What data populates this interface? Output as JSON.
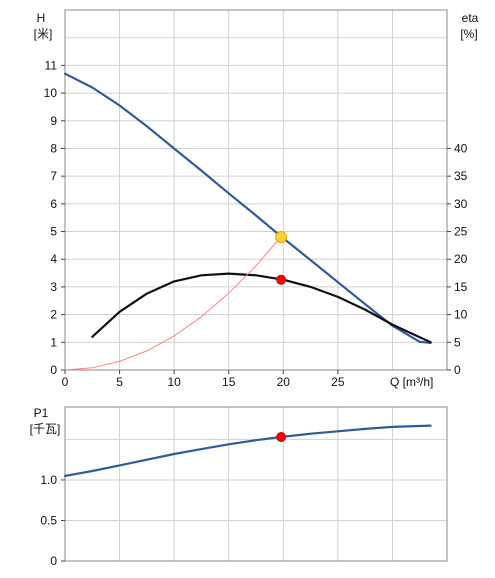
{
  "chart_data": [
    {
      "type": "line",
      "xlabel": "Q [m³/h]",
      "ylabel": "H\n[米]",
      "y2label": "eta\n[%]",
      "xlim": [
        0,
        35
      ],
      "ylim": [
        0,
        13
      ],
      "y2lim": [
        0,
        65
      ],
      "x_ticks": [
        0,
        5,
        10,
        15,
        20,
        25
      ],
      "x_tick_labels": [
        "0",
        "5",
        "10",
        "15",
        "20",
        "25"
      ],
      "y_ticks": [
        0,
        1,
        2,
        3,
        4,
        5,
        6,
        7,
        8,
        9,
        10,
        11
      ],
      "y_tick_labels": [
        "0",
        "1",
        "2",
        "3",
        "4",
        "5",
        "6",
        "7",
        "8",
        "9",
        "10",
        "11"
      ],
      "y2_ticks": [
        0,
        5,
        10,
        15,
        20,
        25,
        30,
        35,
        40
      ],
      "y2_tick_labels": [
        "0",
        "5",
        "10",
        "15",
        "20",
        "25",
        "30",
        "35",
        "40"
      ],
      "grid": true,
      "series": [
        {
          "color": "#2e5c9a",
          "axis": "left",
          "x": [
            0,
            2.5,
            5,
            7.5,
            10,
            12.5,
            15,
            17.5,
            19.8,
            22.5,
            25,
            27.5,
            30,
            32.5,
            33.5
          ],
          "y": [
            10.7,
            10.2,
            9.55,
            8.8,
            8.0,
            7.2,
            6.38,
            5.58,
            4.82,
            3.97,
            3.17,
            2.38,
            1.6,
            1.02,
            0.98
          ]
        },
        {
          "color": "#111111",
          "axis": "right",
          "x": [
            2.5,
            5,
            7.5,
            10,
            12.5,
            15,
            17.5,
            20,
            22.5,
            25,
            27.5,
            30,
            33.5
          ],
          "y": [
            6.0,
            10.5,
            13.8,
            16.0,
            17.1,
            17.4,
            17.1,
            16.3,
            15.0,
            13.2,
            10.9,
            8.2,
            5.0
          ]
        },
        {
          "color": "#ff8080",
          "axis": "left",
          "x": [
            0,
            2.5,
            5,
            7.5,
            10,
            12.5,
            15,
            17.5,
            19.8
          ],
          "y": [
            0,
            0.08,
            0.31,
            0.69,
            1.23,
            1.92,
            2.77,
            3.76,
            4.82
          ]
        }
      ],
      "markers": [
        {
          "x": 19.8,
          "y": 4.8,
          "axis": "left",
          "fill": "#ffd23a",
          "stroke": "#e0a800"
        },
        {
          "x": 19.8,
          "y": 16.3,
          "axis": "right",
          "fill": "#ff0000",
          "stroke": "#cc0000"
        }
      ]
    },
    {
      "type": "line",
      "xlabel": "",
      "ylabel": "P1\n[千瓦]",
      "xlim": [
        0,
        35
      ],
      "ylim": [
        0,
        1.9
      ],
      "y_ticks": [
        0,
        0.5,
        1.0
      ],
      "y_tick_labels": [
        "0",
        "0.5",
        "1.0"
      ],
      "grid": true,
      "series": [
        {
          "color": "#2e5c9a",
          "x": [
            0,
            2.5,
            5,
            7.5,
            10,
            12.5,
            15,
            17.5,
            19.8,
            22.5,
            25,
            27.5,
            30,
            33.5
          ],
          "y": [
            1.05,
            1.11,
            1.18,
            1.25,
            1.32,
            1.38,
            1.44,
            1.49,
            1.53,
            1.57,
            1.6,
            1.63,
            1.655,
            1.67
          ]
        }
      ],
      "markers": [
        {
          "x": 19.8,
          "y": 1.53,
          "fill": "#ff0000",
          "stroke": "#cc0000"
        }
      ]
    }
  ]
}
